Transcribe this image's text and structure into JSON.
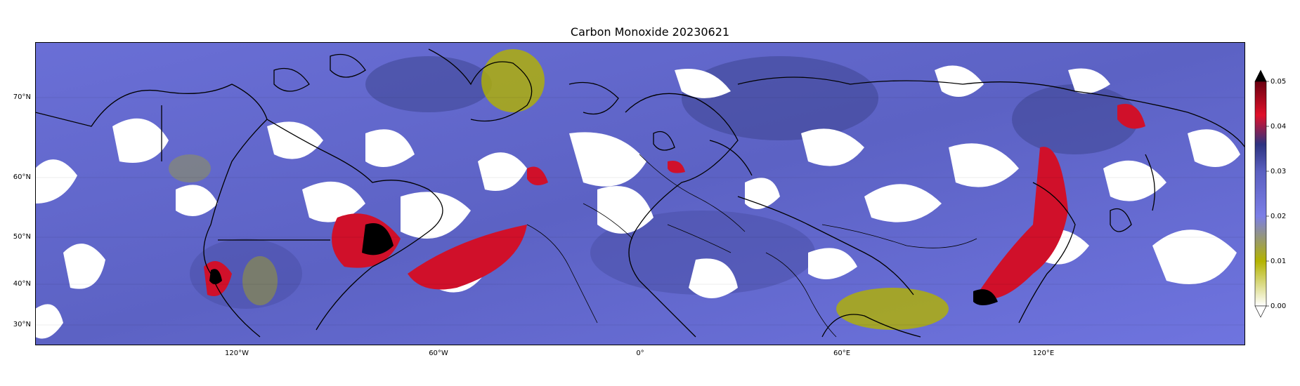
{
  "title": "Carbon Monoxide 20230621",
  "map": {
    "lat_ticks": [
      "70°N",
      "60°N",
      "50°N",
      "40°N",
      "30°N"
    ],
    "lon_ticks": [
      "120°W",
      "60°W",
      "0°",
      "60°E",
      "120°E"
    ],
    "background_color": "#6f72d8",
    "cloud_color": "#ffffff",
    "coast_color": "#000000"
  },
  "colorbar": {
    "ticks": [
      "0.00",
      "0.01",
      "0.02",
      "0.03",
      "0.04",
      "0.05"
    ],
    "colors": [
      "#ffffff",
      "#b3b300",
      "#7b7ee6",
      "#3a3f8a",
      "#e0102a",
      "#000000"
    ],
    "extend": "max"
  }
}
